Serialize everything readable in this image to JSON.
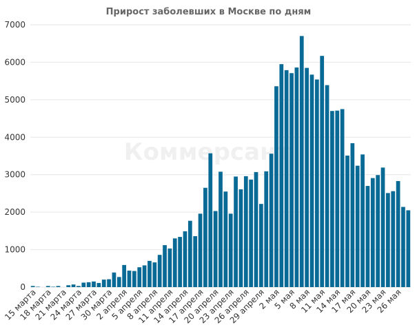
{
  "chart_data": {
    "type": "bar",
    "title": "Прирост заболевших в Москве по дням",
    "xlabel": "",
    "ylabel": "",
    "ylim": [
      0,
      7000
    ],
    "yticks": [
      0,
      1000,
      2000,
      3000,
      4000,
      5000,
      6000,
      7000
    ],
    "grid": true,
    "legend": "none",
    "bar_color": "#0a6a96",
    "watermark": "Коммерсант",
    "categories": [
      "15 марта",
      "16 марта",
      "17 марта",
      "18 марта",
      "19 марта",
      "20 марта",
      "21 марта",
      "22 марта",
      "23 марта",
      "24 марта",
      "25 марта",
      "26 марта",
      "27 марта",
      "28 марта",
      "29 марта",
      "30 марта",
      "31 марта",
      "1 апреля",
      "2 апреля",
      "3 апреля",
      "4 апреля",
      "5 апреля",
      "6 апреля",
      "7 апреля",
      "8 апреля",
      "9 апреля",
      "10 апреля",
      "11 апреля",
      "12 апреля",
      "13 апреля",
      "14 апреля",
      "15 апреля",
      "16 апреля",
      "17 апреля",
      "18 апреля",
      "19 апреля",
      "20 апреля",
      "21 апреля",
      "22 апреля",
      "23 апреля",
      "24 апреля",
      "25 апреля",
      "26 апреля",
      "27 апреля",
      "28 апреля",
      "29 апреля",
      "30 апреля",
      "1 мая",
      "2 мая",
      "3 мая",
      "4 мая",
      "5 мая",
      "6 мая",
      "7 мая",
      "8 мая",
      "9 мая",
      "10 мая",
      "11 мая",
      "12 мая",
      "13 мая",
      "14 мая",
      "15 мая",
      "16 мая",
      "17 мая",
      "18 мая",
      "19 мая",
      "20 мая",
      "21 мая",
      "22 мая",
      "23 мая",
      "24 мая",
      "25 мая",
      "26 мая",
      "27 мая",
      "28 мая"
    ],
    "tick_labels": [
      "15 марта",
      "18 марта",
      "21 марта",
      "24 марта",
      "27 марта",
      "30 марта",
      "2 апреля",
      "5 апреля",
      "8 апреля",
      "11 апреля",
      "14 апреля",
      "17 апреля",
      "20 апреля",
      "23 апреля",
      "26 апреля",
      "29 апреля",
      "2 мая",
      "5 мая",
      "8 мая",
      "11 мая",
      "14 мая",
      "17 мая",
      "20 мая",
      "23 мая",
      "26 мая"
    ],
    "values": [
      30,
      10,
      0,
      30,
      10,
      30,
      0,
      50,
      70,
      30,
      120,
      130,
      150,
      110,
      200,
      210,
      390,
      270,
      590,
      440,
      430,
      530,
      580,
      700,
      660,
      860,
      1120,
      1030,
      1300,
      1340,
      1490,
      1770,
      1360,
      1960,
      2650,
      3570,
      2030,
      3080,
      2550,
      1960,
      2950,
      2610,
      2960,
      2870,
      3070,
      2220,
      3090,
      3560,
      5360,
      5950,
      5790,
      5710,
      5860,
      6700,
      5850,
      5670,
      5540,
      6170,
      5390,
      4700,
      4710,
      4750,
      3510,
      3840,
      3240,
      3540,
      2700,
      2910,
      2990,
      3190,
      2510,
      2560,
      2830,
      2140,
      2050
    ]
  }
}
